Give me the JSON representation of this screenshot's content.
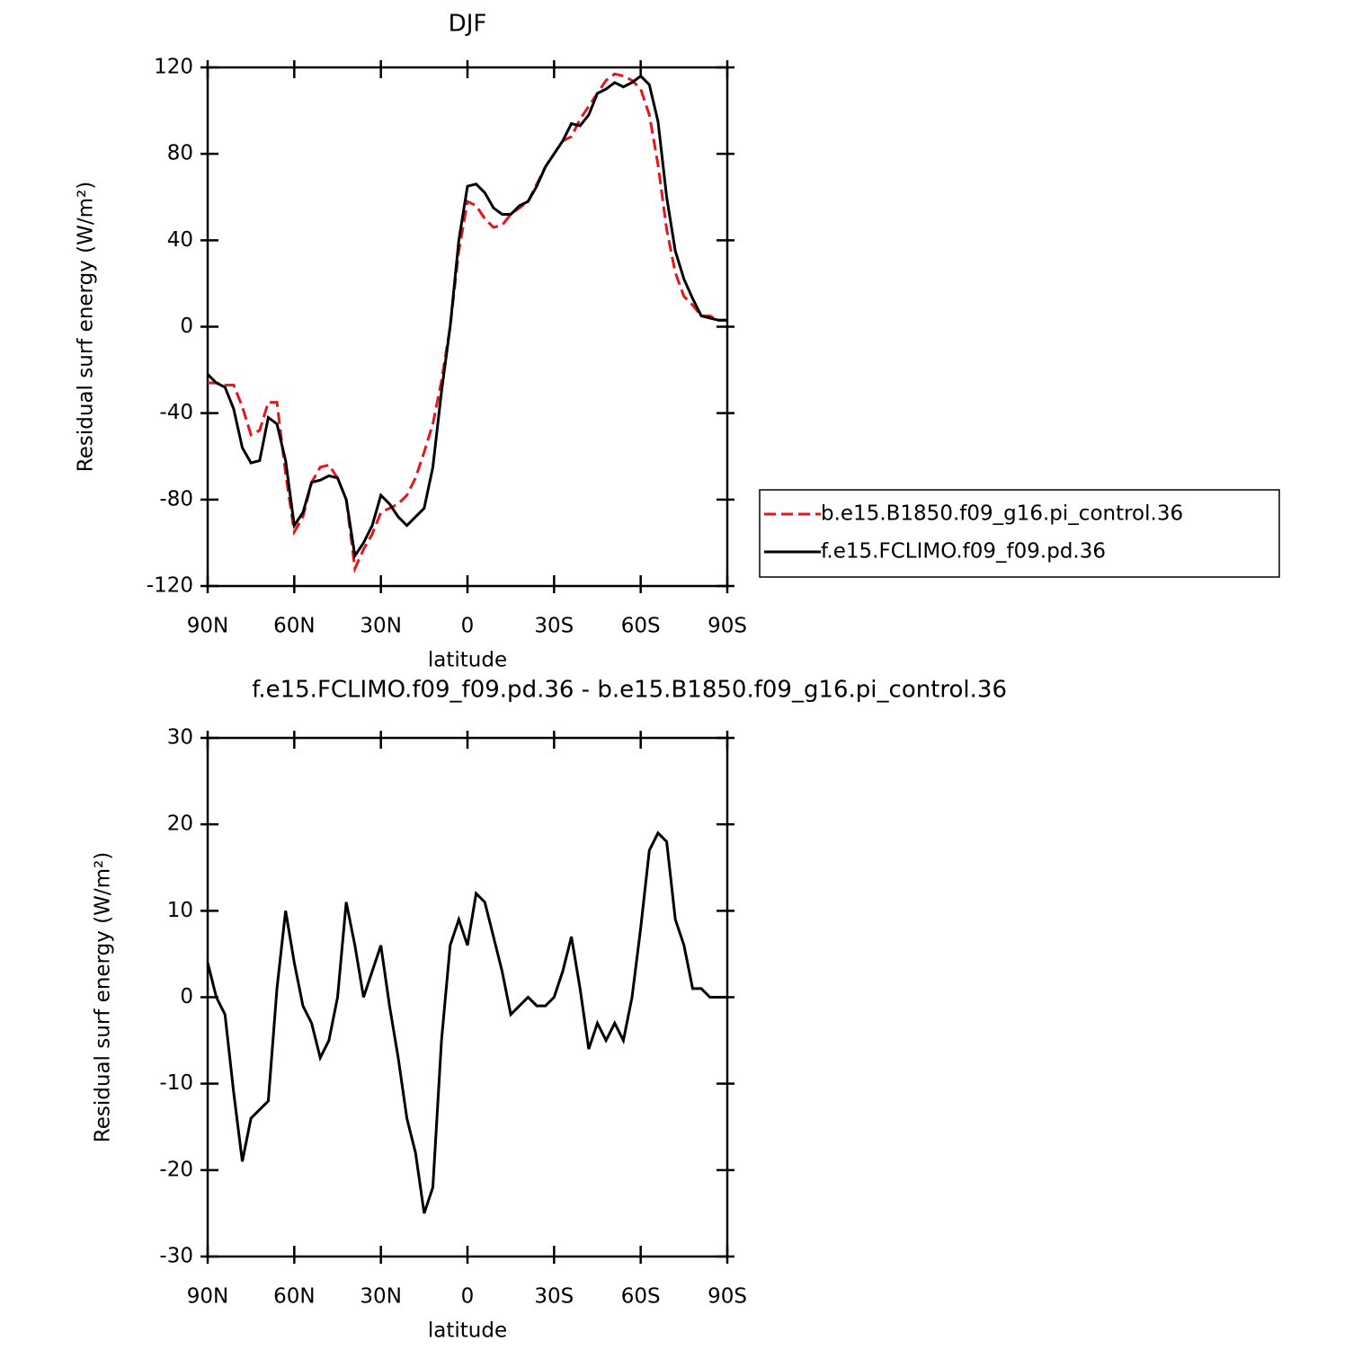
{
  "chart_data": [
    {
      "type": "line",
      "title": "DJF",
      "xlabel": "latitude",
      "ylabel": "Residual surf energy (W/m²)",
      "x": [
        90,
        87,
        84,
        81,
        78,
        75,
        72,
        69,
        66,
        63,
        60,
        57,
        54,
        51,
        48,
        45,
        42,
        39,
        36,
        33,
        30,
        27,
        24,
        21,
        18,
        15,
        12,
        9,
        6,
        3,
        0,
        -3,
        -6,
        -9,
        -12,
        -15,
        -18,
        -21,
        -24,
        -27,
        -30,
        -33,
        -36,
        -39,
        -42,
        -45,
        -48,
        -51,
        -54,
        -57,
        -60,
        -63,
        -66,
        -69,
        -72,
        -75,
        -78,
        -81,
        -84,
        -87,
        -90
      ],
      "xlim": [
        90,
        -90
      ],
      "xticks": [
        {
          "value": 90,
          "label": "90N"
        },
        {
          "value": 60,
          "label": "60N"
        },
        {
          "value": 30,
          "label": "30N"
        },
        0,
        {
          "value": -30,
          "label": "30S"
        },
        {
          "value": -60,
          "label": "60S"
        },
        {
          "value": -90,
          "label": "90S"
        }
      ],
      "ylim": [
        -120,
        120
      ],
      "yticks": [
        -120,
        -80,
        -40,
        0,
        40,
        80,
        120
      ],
      "legend": "right",
      "series": [
        {
          "name": "b.e15.B1850.f09_g16.pi_control.36",
          "color": "#e8141b",
          "dash": true,
          "values": [
            -26,
            -26,
            -27,
            -27,
            -37,
            -50,
            -48,
            -35,
            -35,
            -68,
            -95,
            -88,
            -72,
            -65,
            -64,
            -70,
            -80,
            -112,
            -103,
            -96,
            -86,
            -84,
            -82,
            -78,
            -70,
            -58,
            -45,
            -25,
            0,
            35,
            58,
            56,
            50,
            46,
            47,
            52,
            55,
            58,
            66,
            74,
            80,
            86,
            88,
            96,
            102,
            108,
            114,
            117,
            116,
            114,
            110,
            98,
            75,
            45,
            25,
            14,
            10,
            5,
            5,
            3,
            3
          ]
        },
        {
          "name": "f.e15.FCLIMO.f09_f09.pd.36",
          "color": "#000000",
          "dash": false,
          "values": [
            -22,
            -26,
            -28,
            -38,
            -56,
            -63,
            -62,
            -42,
            -45,
            -62,
            -92,
            -86,
            -72,
            -71,
            -69,
            -70,
            -80,
            -106,
            -100,
            -92,
            -78,
            -82,
            -88,
            -92,
            -88,
            -84,
            -65,
            -30,
            0,
            40,
            65,
            66,
            62,
            55,
            52,
            52,
            56,
            58,
            65,
            74,
            80,
            86,
            94,
            93,
            98,
            108,
            110,
            113,
            111,
            113,
            116,
            112,
            95,
            60,
            35,
            22,
            13,
            5,
            4,
            3,
            3
          ]
        }
      ]
    },
    {
      "type": "line",
      "title": "f.e15.FCLIMO.f09_f09.pd.36 - b.e15.B1850.f09_g16.pi_control.36",
      "xlabel": "latitude",
      "ylabel": "Residual surf energy (W/m²)",
      "x": [
        90,
        87,
        84,
        81,
        78,
        75,
        72,
        69,
        66,
        63,
        60,
        57,
        54,
        51,
        48,
        45,
        42,
        39,
        36,
        33,
        30,
        27,
        24,
        21,
        18,
        15,
        12,
        9,
        6,
        3,
        0,
        -3,
        -6,
        -9,
        -12,
        -15,
        -18,
        -21,
        -24,
        -27,
        -30,
        -33,
        -36,
        -39,
        -42,
        -45,
        -48,
        -51,
        -54,
        -57,
        -60,
        -63,
        -66,
        -69,
        -72,
        -75,
        -78,
        -81,
        -84,
        -87,
        -90
      ],
      "xlim": [
        90,
        -90
      ],
      "xticks": [
        {
          "value": 90,
          "label": "90N"
        },
        {
          "value": 60,
          "label": "60N"
        },
        {
          "value": 30,
          "label": "30N"
        },
        0,
        {
          "value": -30,
          "label": "30S"
        },
        {
          "value": -60,
          "label": "60S"
        },
        {
          "value": -90,
          "label": "90S"
        }
      ],
      "ylim": [
        -30,
        30
      ],
      "yticks": [
        -30,
        -20,
        -10,
        0,
        10,
        20,
        30
      ],
      "color": "#000000",
      "values": [
        4,
        0,
        -2,
        -11,
        -19,
        -14,
        -13,
        -12,
        1,
        10,
        4,
        -1,
        -3,
        -7,
        -5,
        0,
        11,
        6,
        0,
        3,
        6,
        -1,
        -7,
        -14,
        -18,
        -25,
        -22,
        -5,
        6,
        9,
        6,
        12,
        11,
        7,
        3,
        -2,
        -1,
        0,
        -1,
        -1,
        0,
        3,
        7,
        1,
        -6,
        -3,
        -5,
        -3,
        -5,
        0,
        8,
        17,
        19,
        18,
        9,
        6,
        1,
        1,
        0,
        0,
        0
      ]
    }
  ]
}
